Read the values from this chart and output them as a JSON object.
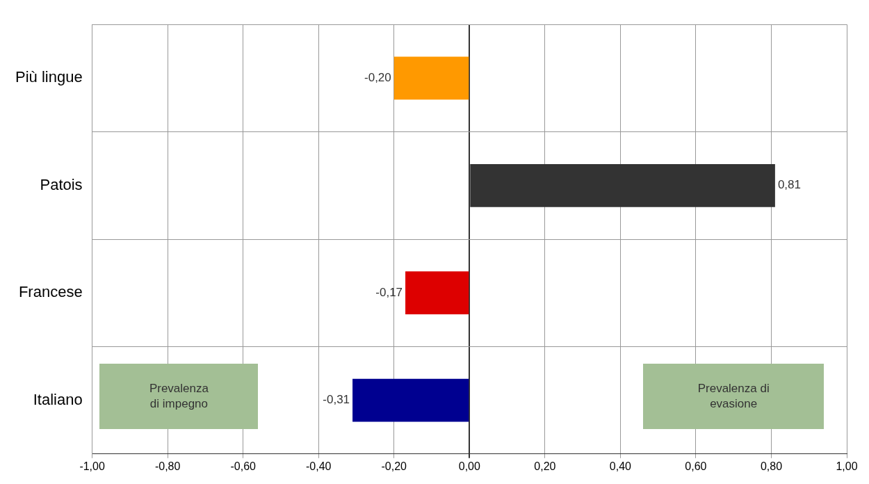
{
  "chart_data": {
    "type": "bar",
    "orientation": "horizontal",
    "categories": [
      "Più lingue",
      "Patois",
      "Francese",
      "Italiano"
    ],
    "values": [
      -0.2,
      0.81,
      -0.17,
      -0.31
    ],
    "colors": [
      "#ff9900",
      "#333333",
      "#dd0000",
      "#000090"
    ],
    "value_labels": [
      "-0,20",
      "0,81",
      "-0,17",
      "-0,31"
    ],
    "xlim": [
      -1,
      1
    ],
    "xticks": [
      {
        "value": -1,
        "label": "-1,00"
      },
      {
        "value": -0.8,
        "label": "-0,80"
      },
      {
        "value": -0.6,
        "label": "-0,60"
      },
      {
        "value": -0.4,
        "label": "-0,40"
      },
      {
        "value": -0.2,
        "label": "-0,20"
      },
      {
        "value": 0,
        "label": "0,00"
      },
      {
        "value": 0.2,
        "label": "0,20"
      },
      {
        "value": 0.4,
        "label": "0,40"
      },
      {
        "value": 0.6,
        "label": "0,60"
      },
      {
        "value": 0.8,
        "label": "0,80"
      },
      {
        "value": 1,
        "label": "1,00"
      }
    ],
    "grid": true,
    "annotations": [
      "Prevalenza di impegno",
      "Prevalenza di evasione"
    ]
  }
}
